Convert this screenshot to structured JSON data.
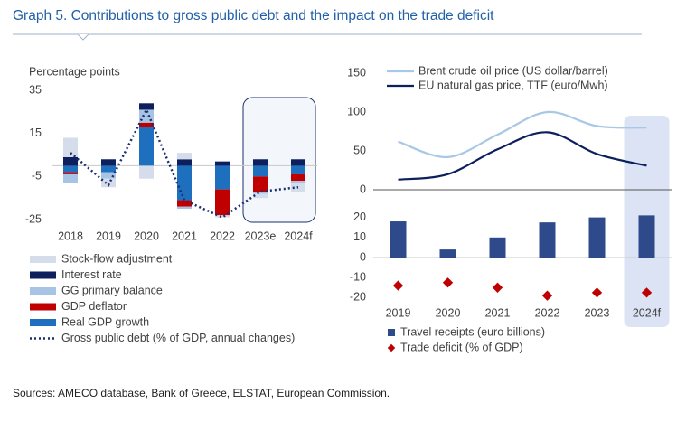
{
  "title": "Graph 5. Contributions to gross public debt and the impact on the trade deficit",
  "source": "Sources: AMECO database, Bank of Greece, ELSTAT, European Commission.",
  "chart_data": [
    {
      "type": "bar",
      "stacked": true,
      "y_label": "Percentage points",
      "categories": [
        "2018",
        "2019",
        "2020",
        "2021",
        "2022",
        "2023e",
        "2024f"
      ],
      "ylim": [
        -25,
        35
      ],
      "yticks": [
        35,
        15,
        -5,
        -25
      ],
      "series": [
        {
          "name": "Stock-flow adjustment",
          "type": "bar",
          "color": "#d5dcea",
          "values": [
            9,
            -4,
            -6,
            3,
            -1,
            -2,
            -4
          ]
        },
        {
          "name": "Interest rate",
          "type": "bar",
          "color": "#0d1f5c",
          "values": [
            4,
            3,
            3,
            3,
            2,
            3,
            3
          ]
        },
        {
          "name": "GG primary balance",
          "type": "bar",
          "color": "#a7c4e5",
          "values": [
            -4,
            -3,
            6,
            -1,
            0,
            -1,
            -1
          ]
        },
        {
          "name": "GDP deflator",
          "type": "bar",
          "color": "#c00000",
          "values": [
            -1,
            0,
            2,
            -3,
            -12,
            -7,
            -3
          ]
        },
        {
          "name": "Real GDP growth",
          "type": "bar",
          "color": "#1f6fbf",
          "values": [
            -3,
            -3,
            18,
            -16,
            -11,
            -5,
            -4
          ]
        },
        {
          "name": "Gross public debt  (% of GDP, annual changes)",
          "type": "line",
          "color": "#1a2f6e",
          "values": [
            6,
            -9,
            26,
            -16,
            -24,
            -12,
            -10
          ]
        }
      ]
    },
    {
      "type": "line",
      "categories": [
        "2019",
        "2020",
        "2021",
        "2022",
        "2023",
        "2024f"
      ],
      "ylim": [
        0,
        150
      ],
      "yticks": [
        0,
        50,
        100,
        150
      ],
      "series": [
        {
          "name": "Brent crude oil price (US dollar/barrel)",
          "color": "#a9c7e6",
          "values": [
            62,
            42,
            71,
            100,
            82,
            80
          ]
        },
        {
          "name": "EU natural gas price, TTF (euro/Mwh)",
          "color": "#0d1f5c",
          "values": [
            13,
            20,
            52,
            74,
            46,
            31
          ]
        }
      ]
    },
    {
      "type": "bar",
      "categories": [
        "2019",
        "2020",
        "2021",
        "2022",
        "2023",
        "2024f"
      ],
      "ylim": [
        -25,
        25
      ],
      "yticks": [
        20,
        10,
        0,
        -10,
        -20
      ],
      "series": [
        {
          "name": "Travel receipts (euro billions)",
          "type": "bar",
          "color": "#2e4a8a",
          "values": [
            18,
            4,
            10,
            17.5,
            20,
            21
          ]
        },
        {
          "name": "Trade deficit (% of GDP)",
          "type": "scatter",
          "color": "#c00000",
          "values": [
            -14,
            -12.5,
            -15,
            -19,
            -17.5,
            -17.5
          ]
        }
      ]
    }
  ]
}
